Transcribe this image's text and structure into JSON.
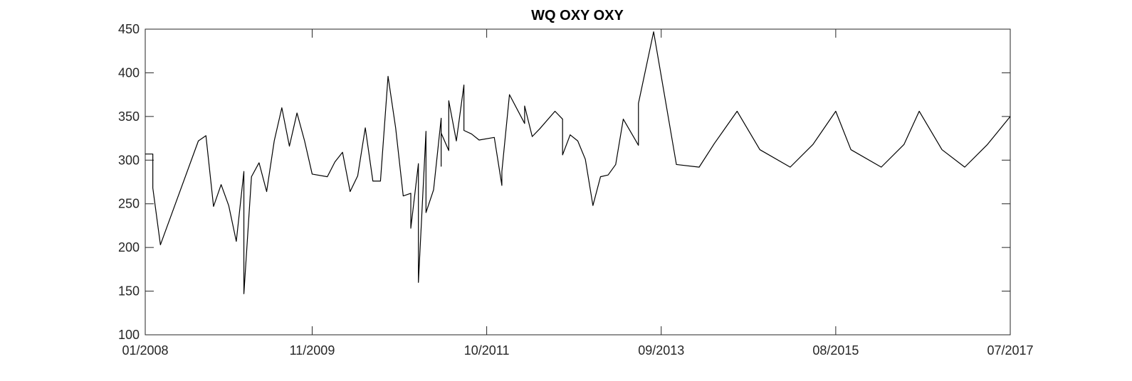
{
  "chart_data": {
    "type": "line",
    "title": "WQ OXY OXY",
    "x": [
      "01/2008",
      "02/2008",
      "02/2008",
      "03/2008",
      "08/2008",
      "09/2008",
      "10/2008",
      "11/2008",
      "12/2008",
      "01/2009",
      "02/2009",
      "02/2009",
      "03/2009",
      "04/2009",
      "05/2009",
      "06/2009",
      "07/2009",
      "08/2009",
      "09/2009",
      "10/2009",
      "11/2009",
      "01/2010",
      "02/2010",
      "03/2010",
      "04/2010",
      "05/2010",
      "06/2010",
      "07/2010",
      "08/2010",
      "09/2010",
      "10/2010",
      "11/2010",
      "12/2010",
      "12/2010",
      "01/2011",
      "01/2011",
      "02/2011",
      "02/2011",
      "03/2011",
      "04/2011",
      "04/2011",
      "04/2011",
      "05/2011",
      "05/2011",
      "06/2011",
      "07/2011",
      "07/2011",
      "08/2011",
      "09/2011",
      "11/2011",
      "12/2011",
      "12/2011",
      "01/2012",
      "03/2012",
      "03/2012",
      "04/2012",
      "05/2012",
      "07/2012",
      "08/2012",
      "08/2012",
      "09/2012",
      "10/2012",
      "11/2012",
      "12/2012",
      "01/2013",
      "02/2013",
      "03/2013",
      "04/2013",
      "06/2013",
      "06/2013",
      "08/2013",
      "11/2013",
      "02/2014",
      "04/2014",
      "07/2014",
      "10/2014",
      "02/2015",
      "05/2015",
      "08/2015",
      "10/2015",
      "02/2016",
      "05/2016",
      "07/2016",
      "10/2016",
      "01/2017",
      "04/2017",
      "07/2017"
    ],
    "series": [
      {
        "color": "#000000",
        "values": [
          307,
          307,
          268,
          203,
          322,
          328,
          247,
          272,
          248,
          207,
          287,
          147,
          281,
          297,
          264,
          322,
          360,
          316,
          354,
          322,
          284,
          281,
          298,
          309,
          264,
          282,
          337,
          276,
          276,
          396,
          337,
          259,
          262,
          222,
          296,
          160,
          333,
          240,
          266,
          348,
          293,
          331,
          311,
          368,
          322,
          386,
          334,
          330,
          323,
          326,
          271,
          287,
          375,
          342,
          362,
          327,
          336,
          356,
          347,
          306,
          329,
          322,
          301,
          248,
          281,
          283,
          295,
          347,
          317,
          365,
          447,
          295,
          292,
          319,
          356,
          312,
          292,
          318,
          356,
          312,
          292,
          318,
          356,
          312,
          292,
          318,
          350
        ]
      }
    ],
    "xlim": [
      "01/2008",
      "07/2017"
    ],
    "xticks": [
      "01/2008",
      "11/2009",
      "10/2011",
      "09/2013",
      "08/2015",
      "07/2017"
    ],
    "ylim": [
      100,
      450
    ],
    "yticks": [
      100,
      150,
      200,
      250,
      300,
      350,
      400,
      450
    ]
  }
}
